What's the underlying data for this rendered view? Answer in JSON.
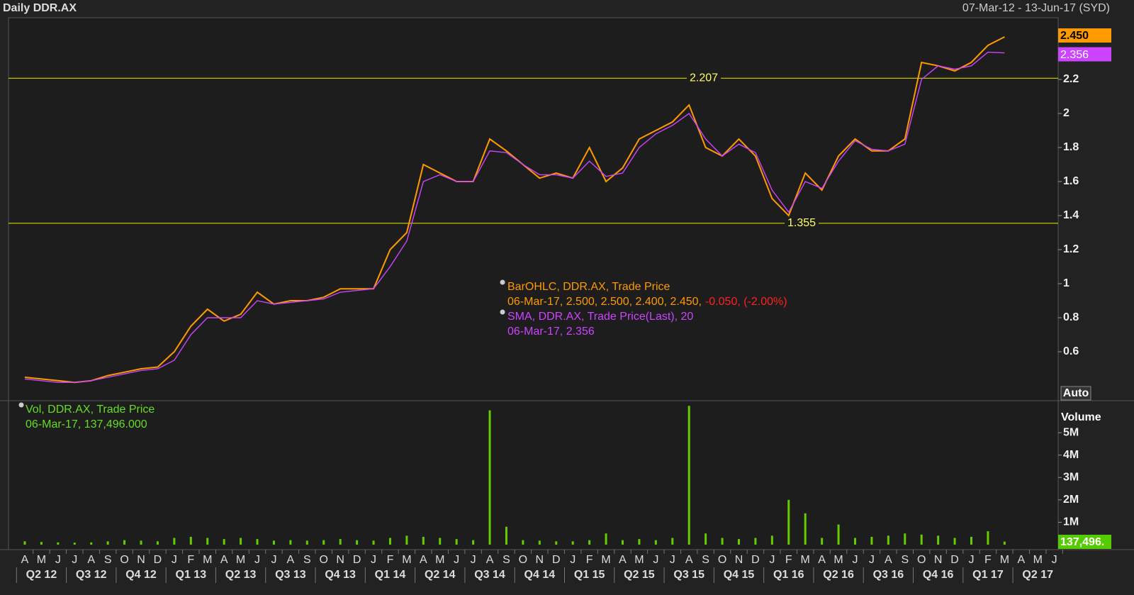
{
  "header": {
    "title": "Daily DDR.AX",
    "range": "07-Mar-12 - 13-Jun-17 (SYD)"
  },
  "chart_data": [
    {
      "type": "line",
      "name": "price",
      "categories": [
        "A",
        "M",
        "J",
        "J",
        "A",
        "S",
        "O",
        "N",
        "D",
        "J",
        "F",
        "M",
        "A",
        "M",
        "J",
        "J",
        "A",
        "S",
        "O",
        "N",
        "D",
        "J",
        "F",
        "M",
        "A",
        "M",
        "J",
        "J",
        "A",
        "S",
        "O",
        "N",
        "D",
        "J",
        "F",
        "M",
        "A",
        "M",
        "J",
        "J",
        "A",
        "S",
        "O",
        "N",
        "D",
        "J",
        "F",
        "M",
        "A",
        "M",
        "J",
        "J",
        "A",
        "S",
        "O",
        "N",
        "D",
        "J",
        "F",
        "M",
        "A",
        "M",
        "J"
      ],
      "quarters": [
        "Q2 12",
        "Q3 12",
        "Q4 12",
        "Q1 13",
        "Q2 13",
        "Q3 13",
        "Q4 13",
        "Q1 14",
        "Q2 14",
        "Q3 14",
        "Q4 14",
        "Q1 15",
        "Q2 15",
        "Q3 15",
        "Q4 15",
        "Q1 16",
        "Q2 16",
        "Q3 16",
        "Q4 16",
        "Q1 17",
        "Q2 17"
      ],
      "series": [
        {
          "name": "BarOHLC, DDR.AX, Trade Price",
          "color": "#ff9900",
          "values": [
            0.45,
            0.44,
            0.43,
            0.42,
            0.43,
            0.46,
            0.48,
            0.5,
            0.51,
            0.6,
            0.75,
            0.85,
            0.78,
            0.82,
            0.95,
            0.88,
            0.9,
            0.9,
            0.92,
            0.97,
            0.97,
            0.97,
            1.2,
            1.3,
            1.7,
            1.65,
            1.6,
            1.6,
            1.85,
            1.78,
            1.7,
            1.62,
            1.65,
            1.62,
            1.8,
            1.6,
            1.68,
            1.85,
            1.9,
            1.95,
            2.05,
            1.8,
            1.75,
            1.85,
            1.75,
            1.5,
            1.4,
            1.65,
            1.55,
            1.75,
            1.85,
            1.78,
            1.78,
            1.85,
            2.3,
            2.28,
            2.25,
            2.3,
            2.4,
            2.45,
            null,
            null,
            null
          ]
        },
        {
          "name": "SMA, DDR.AX, Trade Price(Last),  20",
          "color": "#cc44ff",
          "values": [
            0.44,
            0.43,
            0.42,
            0.42,
            0.43,
            0.45,
            0.47,
            0.49,
            0.5,
            0.55,
            0.7,
            0.8,
            0.8,
            0.8,
            0.9,
            0.88,
            0.89,
            0.9,
            0.91,
            0.95,
            0.96,
            0.97,
            1.1,
            1.25,
            1.6,
            1.64,
            1.6,
            1.6,
            1.78,
            1.77,
            1.7,
            1.64,
            1.64,
            1.62,
            1.72,
            1.63,
            1.65,
            1.8,
            1.88,
            1.93,
            2.0,
            1.85,
            1.75,
            1.82,
            1.77,
            1.55,
            1.42,
            1.6,
            1.56,
            1.72,
            1.84,
            1.79,
            1.78,
            1.82,
            2.2,
            2.28,
            2.26,
            2.28,
            2.36,
            2.356,
            null,
            null,
            null
          ]
        }
      ],
      "ylim": [
        0.3125,
        2.5625
      ],
      "yticks": [
        0.6,
        0.8,
        1,
        1.2,
        1.4,
        1.6,
        1.8,
        2,
        2.2
      ],
      "levels": [
        {
          "value": 2.207,
          "label": "2.207"
        },
        {
          "value": 1.355,
          "label": "1.355"
        }
      ],
      "last_labels": [
        {
          "value": 2.45,
          "label": "2.450"
        },
        {
          "value": 2.356,
          "label": "2.356"
        }
      ],
      "legend": {
        "ohlc_title": "BarOHLC, DDR.AX, Trade Price",
        "ohlc_values": "06-Mar-17, 2.500, 2.500, 2.400, 2.450,",
        "ohlc_change": "-0.050, (-2.00%)",
        "sma_title": "SMA, DDR.AX, Trade Price(Last),  20",
        "sma_values": "06-Mar-17, 2.356"
      },
      "auto": "Auto"
    },
    {
      "type": "bar",
      "name": "volume",
      "title": "Volume",
      "color": "#66cc00",
      "values": [
        150000,
        120000,
        100000,
        90000,
        100000,
        150000,
        200000,
        180000,
        150000,
        300000,
        350000,
        300000,
        250000,
        300000,
        250000,
        180000,
        200000,
        180000,
        200000,
        250000,
        200000,
        180000,
        300000,
        400000,
        350000,
        300000,
        250000,
        200000,
        6000000,
        800000,
        200000,
        180000,
        150000,
        150000,
        200000,
        500000,
        200000,
        250000,
        200000,
        300000,
        6200000,
        500000,
        300000,
        250000,
        300000,
        400000,
        2000000,
        1400000,
        300000,
        900000,
        300000,
        350000,
        400000,
        500000,
        450000,
        400000,
        300000,
        350000,
        600000,
        137496,
        null,
        null,
        null
      ],
      "ylim": [
        0,
        6430000
      ],
      "yticks": [
        {
          "value": 1000000,
          "label": "1M"
        },
        {
          "value": 2000000,
          "label": "2M"
        },
        {
          "value": 3000000,
          "label": "3M"
        },
        {
          "value": 4000000,
          "label": "4M"
        },
        {
          "value": 5000000,
          "label": "5M"
        }
      ],
      "legend": {
        "title": "Vol, DDR.AX, Trade Price",
        "values": "06-Mar-17, 137,496.000"
      },
      "last_label": "137,496."
    }
  ]
}
